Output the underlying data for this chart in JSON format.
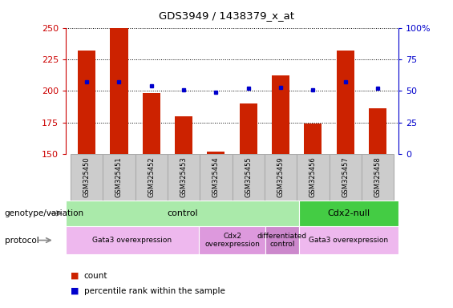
{
  "title": "GDS3949 / 1438379_x_at",
  "samples": [
    "GSM325450",
    "GSM325451",
    "GSM325452",
    "GSM325453",
    "GSM325454",
    "GSM325455",
    "GSM325459",
    "GSM325456",
    "GSM325457",
    "GSM325458"
  ],
  "count_values": [
    232,
    250,
    198,
    180,
    152,
    190,
    212,
    174,
    232,
    186
  ],
  "percentile_values": [
    57,
    57,
    54,
    51,
    49,
    52,
    53,
    51,
    57,
    52
  ],
  "ylim_left": [
    150,
    250
  ],
  "ylim_right": [
    0,
    100
  ],
  "left_ticks": [
    150,
    175,
    200,
    225,
    250
  ],
  "right_ticks": [
    0,
    25,
    50,
    75,
    100
  ],
  "bar_color": "#cc2200",
  "dot_color": "#0000cc",
  "bar_width": 0.55,
  "genotype_groups": [
    {
      "label": "control",
      "start": 0,
      "end": 7,
      "color": "#aaeaaa"
    },
    {
      "label": "Cdx2-null",
      "start": 7,
      "end": 10,
      "color": "#44cc44"
    }
  ],
  "protocol_groups": [
    {
      "label": "Gata3 overexpression",
      "start": 0,
      "end": 4,
      "color": "#eeb8ee"
    },
    {
      "label": "Cdx2\noverexpression",
      "start": 4,
      "end": 6,
      "color": "#dd99dd"
    },
    {
      "label": "differentiated\ncontrol",
      "start": 6,
      "end": 7,
      "color": "#cc88cc"
    },
    {
      "label": "Gata3 overexpression",
      "start": 7,
      "end": 10,
      "color": "#eeb8ee"
    }
  ],
  "legend_count_color": "#cc2200",
  "legend_pct_color": "#0000cc",
  "left_tick_color": "#cc0000",
  "right_tick_color": "#0000cc",
  "background_color": "#ffffff",
  "sample_box_color": "#cccccc",
  "sample_box_edge": "#aaaaaa"
}
